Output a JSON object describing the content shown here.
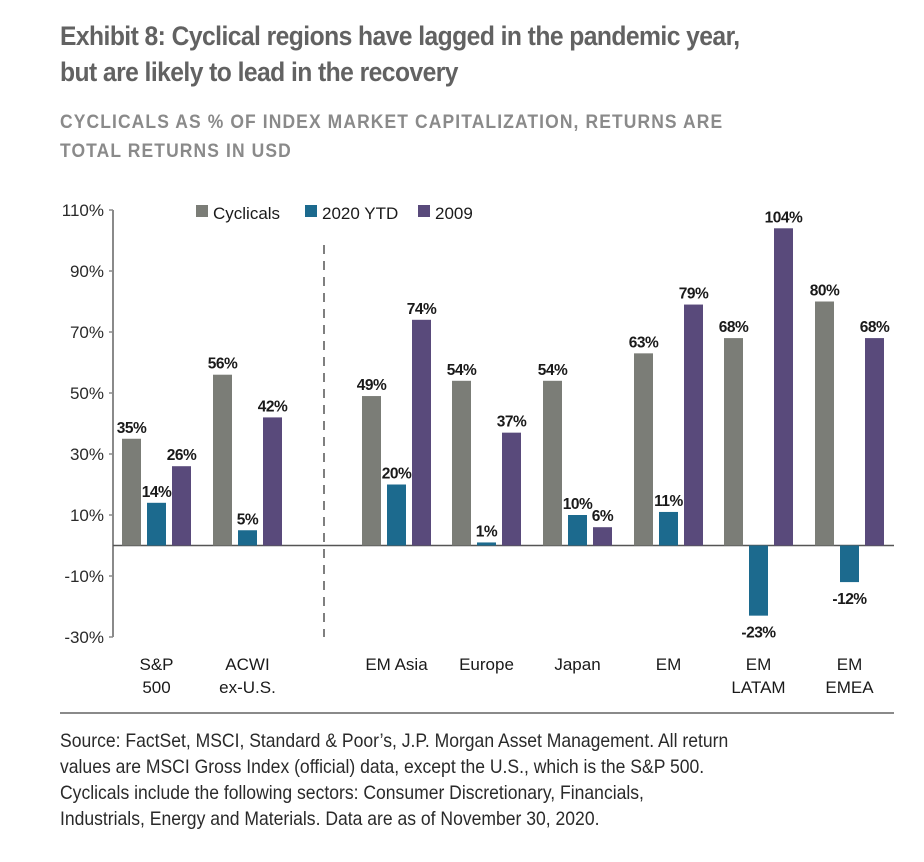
{
  "header": {
    "title_line1": "Exhibit 8: Cyclical regions have lagged in the pandemic year,",
    "title_line2": "but are likely to lead in the recovery",
    "subtitle_line1": "CYCLICALS AS % OF INDEX MARKET CAPITALIZATION, RETURNS ARE",
    "subtitle_line2": "TOTAL RETURNS IN USD"
  },
  "footer": {
    "source_lines": [
      "Source: FactSet, MSCI, Standard & Poor’s, J.P. Morgan Asset Management. All return",
      "values are MSCI Gross Index (official) data, except the U.S., which is the S&P 500.",
      "Cyclicals include the following sectors: Consumer Discretionary, Financials,",
      "Industrials, Energy and Materials. Data are as of November 30, 2020."
    ]
  },
  "colors": {
    "cyclicals": "#7b7d77",
    "ytd2020": "#1c6a8e",
    "y2009": "#594a7b",
    "axis": "#8a8a8a",
    "label": "#1a1a1a"
  },
  "chart_data": {
    "type": "bar",
    "title": "Exhibit 8: Cyclical regions have lagged in the pandemic year, but are likely to lead in the recovery",
    "subtitle": "CYCLICALS AS % OF INDEX MARKET CAPITALIZATION, RETURNS ARE TOTAL RETURNS IN USD",
    "xlabel": "",
    "ylabel": "",
    "categories": [
      [
        "S&P",
        "500"
      ],
      [
        "ACWI",
        "ex-U.S."
      ],
      [
        "EM Asia"
      ],
      [
        "Europe"
      ],
      [
        "Japan"
      ],
      [
        "EM"
      ],
      [
        "EM",
        "LATAM"
      ],
      [
        "EM",
        "EMEA"
      ]
    ],
    "series": [
      {
        "name": "Cyclicals",
        "color_key": "cyclicals",
        "values": [
          35,
          56,
          49,
          54,
          54,
          63,
          68,
          80
        ]
      },
      {
        "name": "2020 YTD",
        "color_key": "ytd2020",
        "values": [
          14,
          5,
          20,
          1,
          10,
          11,
          -23,
          -12
        ]
      },
      {
        "name": "2009",
        "color_key": "y2009",
        "values": [
          26,
          42,
          74,
          37,
          6,
          79,
          104,
          68
        ]
      }
    ],
    "value_suffix": "%",
    "ylim": [
      -30,
      110
    ],
    "yticks": [
      110,
      90,
      70,
      50,
      30,
      10,
      -10,
      -30
    ],
    "ytick_labels": [
      "110%",
      "90%",
      "70%",
      "50%",
      "30%",
      "10%",
      "-10%",
      "-30%"
    ],
    "legend": "top-center",
    "group_separator_after_index": 1,
    "grid": false
  }
}
